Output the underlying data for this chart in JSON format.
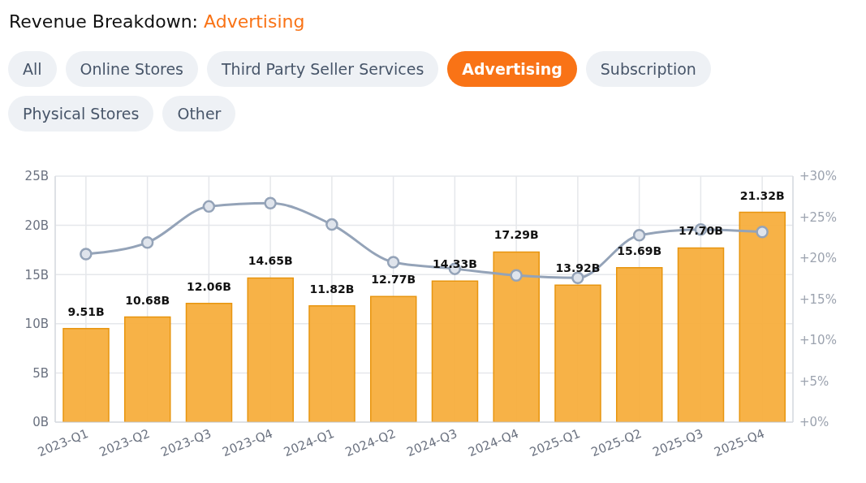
{
  "chart_data": {
    "type": "bar",
    "title": "Revenue Breakdown:",
    "subtitle": "Advertising",
    "annotations": [
      "All",
      "Online Stores",
      "Third Party Seller Services",
      "Advertising",
      "Subscription",
      "Physical Stores",
      "Other"
    ],
    "categories": [
      "2023-Q1",
      "2023-Q2",
      "2023-Q3",
      "2023-Q4",
      "2024-Q1",
      "2024-Q2",
      "2024-Q3",
      "2024-Q4",
      "2025-Q1",
      "2025-Q2",
      "2025-Q3",
      "2025-Q4"
    ],
    "series": [
      {
        "color": "#f7ae3d",
        "values": [
          9.51,
          10.68,
          12.06,
          14.65,
          11.82,
          12.77,
          14.33,
          17.29,
          13.92,
          15.69,
          17.7,
          21.32
        ],
        "value_labels": [
          "9.51B",
          "10.68B",
          "12.06B",
          "14.65B",
          "11.82B",
          "12.77B",
          "14.33B",
          "17.29B",
          "13.92B",
          "15.69B",
          "17.70B",
          "21.32B"
        ]
      },
      {
        "type": "line",
        "axis": "y2",
        "color": "#94a3b8",
        "marker": "circle",
        "values": [
          20.5,
          21.9,
          26.3,
          26.7,
          24.1,
          19.5,
          18.7,
          17.9,
          17.6,
          22.8,
          23.5,
          23.2
        ]
      }
    ],
    "ylim": [
      0,
      25
    ],
    "yticks": [
      {
        "value": 0,
        "label": "0B"
      },
      {
        "value": 5,
        "label": "5B"
      },
      {
        "value": 10,
        "label": "10B"
      },
      {
        "value": 15,
        "label": "15B"
      },
      {
        "value": 20,
        "label": "20B"
      },
      {
        "value": 25,
        "label": "25B"
      }
    ],
    "y2lim": [
      0,
      30
    ],
    "y2ticks": [
      {
        "value": 0,
        "label": "+0%"
      },
      {
        "value": 5,
        "label": "+5%"
      },
      {
        "value": 10,
        "label": "+10%"
      },
      {
        "value": 15,
        "label": "+15%"
      },
      {
        "value": 20,
        "label": "+20%"
      },
      {
        "value": 25,
        "label": "+25%"
      },
      {
        "value": 30,
        "label": "+30%"
      }
    ],
    "grid": true,
    "legend": false
  }
}
